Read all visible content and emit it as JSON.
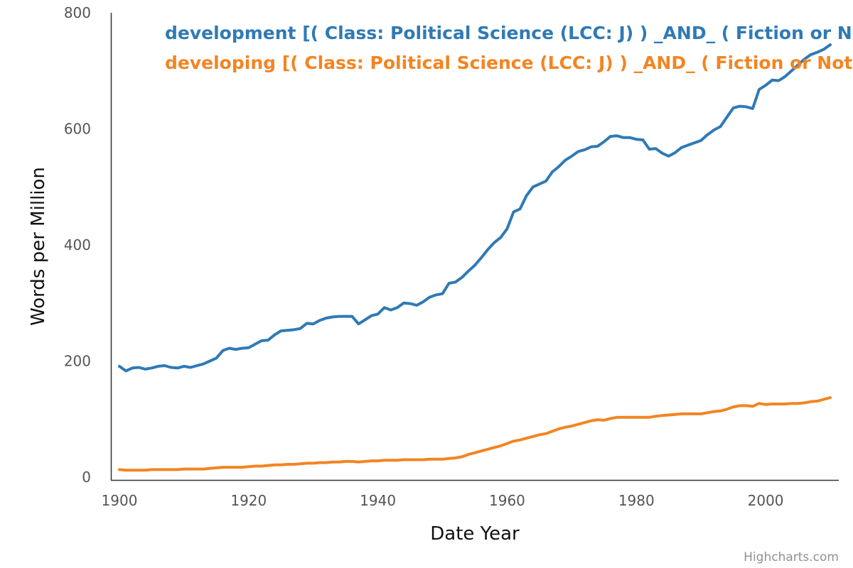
{
  "chart_data": {
    "type": "line",
    "title": "",
    "xlabel": "Date Year",
    "ylabel": "Words per Million",
    "xlim": [
      1900,
      2010
    ],
    "ylim": [
      0,
      800
    ],
    "x_ticks": [
      "1900",
      "1920",
      "1940",
      "1960",
      "1980",
      "2000"
    ],
    "y_ticks": [
      "0",
      "200",
      "400",
      "600",
      "800"
    ],
    "grid": false,
    "legend_position": "top-right",
    "credits": "Highcharts.com",
    "series": [
      {
        "name": "development [( Class: Political Science (LCC: J) ) _AND_ ( Fiction or Not Fiction: Not Fiction )]",
        "color": "#2f7ab5",
        "x": [
          1900,
          1901,
          1902,
          1903,
          1904,
          1905,
          1906,
          1907,
          1908,
          1909,
          1910,
          1911,
          1912,
          1913,
          1914,
          1915,
          1916,
          1917,
          1918,
          1919,
          1920,
          1921,
          1922,
          1923,
          1924,
          1925,
          1926,
          1927,
          1928,
          1929,
          1930,
          1931,
          1932,
          1933,
          1934,
          1935,
          1936,
          1937,
          1938,
          1939,
          1940,
          1941,
          1942,
          1943,
          1944,
          1945,
          1946,
          1947,
          1948,
          1949,
          1950,
          1951,
          1952,
          1953,
          1954,
          1955,
          1956,
          1957,
          1958,
          1959,
          1960,
          1961,
          1962,
          1963,
          1964,
          1965,
          1966,
          1967,
          1968,
          1969,
          1970,
          1971,
          1972,
          1973,
          1974,
          1975,
          1976,
          1977,
          1978,
          1979,
          1980,
          1981,
          1982,
          1983,
          1984,
          1985,
          1986,
          1987,
          1988,
          1989,
          1990,
          1991,
          1992,
          1993,
          1994,
          1995,
          1996,
          1997,
          1998,
          1999,
          2000,
          2001,
          2002,
          2003,
          2004,
          2005,
          2006,
          2007,
          2008,
          2009,
          2010
        ],
        "values": [
          191,
          183,
          188,
          189,
          186,
          188,
          191,
          192,
          189,
          188,
          191,
          189,
          192,
          195,
          200,
          205,
          218,
          222,
          220,
          222,
          223,
          229,
          235,
          236,
          245,
          252,
          253,
          254,
          256,
          265,
          264,
          270,
          274,
          276,
          277,
          277,
          277,
          264,
          271,
          278,
          281,
          292,
          288,
          292,
          300,
          299,
          296,
          302,
          310,
          314,
          316,
          334,
          336,
          344,
          355,
          365,
          378,
          392,
          404,
          413,
          428,
          457,
          462,
          485,
          500,
          505,
          510,
          526,
          535,
          546,
          553,
          561,
          564,
          569,
          570,
          578,
          587,
          588,
          585,
          585,
          582,
          581,
          565,
          566,
          558,
          553,
          559,
          568,
          572,
          576,
          580,
          590,
          598,
          604,
          620,
          636,
          639,
          638,
          635,
          668,
          675,
          684,
          683,
          690,
          700,
          710,
          720,
          728,
          732,
          737,
          745
        ]
      },
      {
        "name": "developing [( Class: Political Science (LCC: J) ) _AND_ ( Fiction or Not Fiction: Not Fiction )]",
        "color": "#f28522",
        "x": [
          1900,
          1901,
          1902,
          1903,
          1904,
          1905,
          1906,
          1907,
          1908,
          1909,
          1910,
          1911,
          1912,
          1913,
          1914,
          1915,
          1916,
          1917,
          1918,
          1919,
          1920,
          1921,
          1922,
          1923,
          1924,
          1925,
          1926,
          1927,
          1928,
          1929,
          1930,
          1931,
          1932,
          1933,
          1934,
          1935,
          1936,
          1937,
          1938,
          1939,
          1940,
          1941,
          1942,
          1943,
          1944,
          1945,
          1946,
          1947,
          1948,
          1949,
          1950,
          1951,
          1952,
          1953,
          1954,
          1955,
          1956,
          1957,
          1958,
          1959,
          1960,
          1961,
          1962,
          1963,
          1964,
          1965,
          1966,
          1967,
          1968,
          1969,
          1970,
          1971,
          1972,
          1973,
          1974,
          1975,
          1976,
          1977,
          1978,
          1979,
          1980,
          1981,
          1982,
          1983,
          1984,
          1985,
          1986,
          1987,
          1988,
          1989,
          1990,
          1991,
          1992,
          1993,
          1994,
          1995,
          1996,
          1997,
          1998,
          1999,
          2000,
          2001,
          2002,
          2003,
          2004,
          2005,
          2006,
          2007,
          2008,
          2009,
          2010
        ],
        "values": [
          13,
          12,
          12,
          12,
          12,
          13,
          13,
          13,
          13,
          13,
          14,
          14,
          14,
          14,
          15,
          16,
          17,
          17,
          17,
          17,
          18,
          19,
          19,
          20,
          21,
          21,
          22,
          22,
          23,
          24,
          24,
          25,
          25,
          26,
          26,
          27,
          27,
          26,
          27,
          28,
          28,
          29,
          29,
          29,
          30,
          30,
          30,
          30,
          31,
          31,
          31,
          32,
          33,
          35,
          39,
          42,
          45,
          48,
          51,
          54,
          58,
          62,
          64,
          67,
          70,
          73,
          75,
          79,
          83,
          86,
          88,
          91,
          94,
          97,
          99,
          98,
          101,
          103,
          103,
          103,
          103,
          103,
          103,
          105,
          106,
          107,
          108,
          109,
          109,
          109,
          109,
          111,
          113,
          114,
          117,
          121,
          123,
          123,
          122,
          127,
          125,
          126,
          126,
          126,
          127,
          127,
          128,
          130,
          131,
          134,
          137
        ]
      }
    ]
  }
}
